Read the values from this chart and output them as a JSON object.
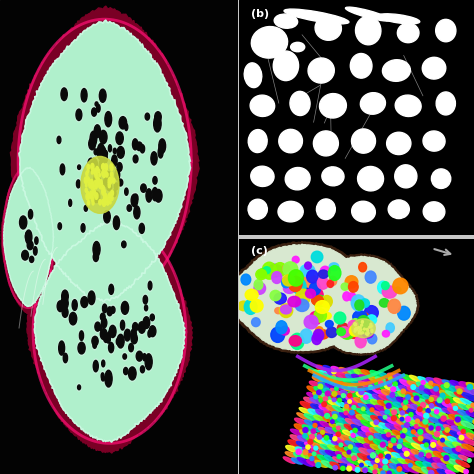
{
  "bg_color": "#c8c8c8",
  "panel_a": {
    "tissue_color": "#b8ffd8",
    "bark_color": "#8b0a3a",
    "bark_outer_color": "#550022",
    "vessel_color": "#111111",
    "pith_color": "#d8e860",
    "white_line_color": "#ffffff"
  },
  "panel_b": {
    "bg": "#000000",
    "vessel_color": "#ffffff",
    "label_color": "#ffffff"
  },
  "panel_c": {
    "bg": "#000000",
    "tissue_color": "#c8e8c8",
    "vessel_colors": [
      "#ff2020",
      "#20ff20",
      "#2020ff",
      "#ffff00",
      "#ff20ff",
      "#20ffff",
      "#ff8800",
      "#8800ff",
      "#00ff88",
      "#ff0088",
      "#88ff00",
      "#0088ff",
      "#ff4400",
      "#44ff00",
      "#0044ff",
      "#ff44cc",
      "#cc44ff",
      "#44ccff",
      "#ff8844",
      "#88ff44",
      "#4488ff",
      "#dd2222",
      "#22dd22",
      "#2222dd",
      "#dddd00",
      "#dd00dd",
      "#00dddd"
    ],
    "fiber_colors": [
      "#ff2222",
      "#22ff22",
      "#2222ff",
      "#ffff22",
      "#ff22ff",
      "#22ffff",
      "#ff8822",
      "#8822ff",
      "#22ff88",
      "#ff2288",
      "#88ff22",
      "#2288ff",
      "#ff6600",
      "#6600ff",
      "#00ff66",
      "#cc00cc",
      "#00cccc",
      "#cccc00",
      "#ff4488",
      "#44ff88",
      "#8844ff"
    ]
  }
}
